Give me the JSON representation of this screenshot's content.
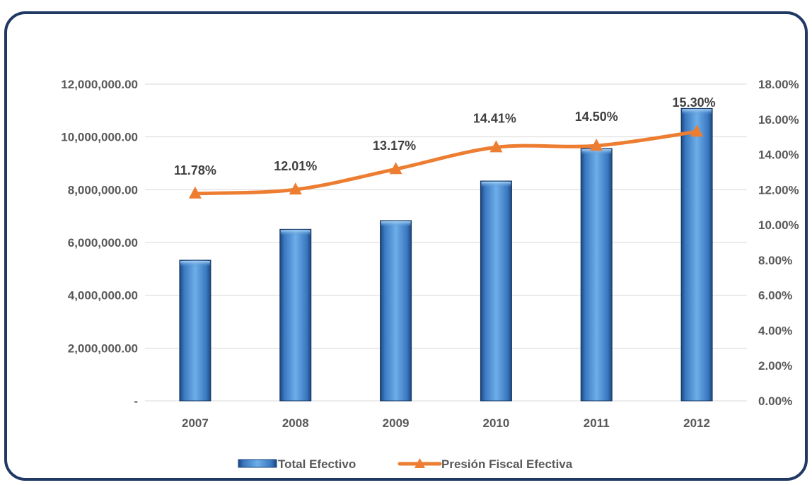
{
  "chart_data": {
    "type": "bar",
    "categories": [
      "2007",
      "2008",
      "2009",
      "2010",
      "2011",
      "2012"
    ],
    "series": [
      {
        "name": "Total Efectivo",
        "type": "bar",
        "axis": "left",
        "values": [
          5330000,
          6500000,
          6830000,
          8330000,
          9560000,
          11080000
        ],
        "color": "#4f8fd0"
      },
      {
        "name": "Presión Fiscal Efectiva",
        "type": "line",
        "axis": "right",
        "values": [
          11.78,
          12.01,
          13.17,
          14.41,
          14.5,
          15.3
        ],
        "labels": [
          "11.78%",
          "12.01%",
          "13.17%",
          "14.41%",
          "14.50%",
          "15.30%"
        ],
        "color": "#ed7d31",
        "marker": "triangle"
      }
    ],
    "left_axis": {
      "ylim": [
        0,
        12000000
      ],
      "ticks": [
        {
          "value": 0,
          "label": "-"
        },
        {
          "value": 2000000,
          "label": "2,000,000.00"
        },
        {
          "value": 4000000,
          "label": "4,000,000.00"
        },
        {
          "value": 6000000,
          "label": "6,000,000.00"
        },
        {
          "value": 8000000,
          "label": "8,000,000.00"
        },
        {
          "value": 10000000,
          "label": "10,000,000.00"
        },
        {
          "value": 12000000,
          "label": "12,000,000.00"
        }
      ]
    },
    "right_axis": {
      "ylim": [
        0,
        18
      ],
      "ticks": [
        {
          "value": 0,
          "label": "0.00%"
        },
        {
          "value": 2,
          "label": "2.00%"
        },
        {
          "value": 4,
          "label": "4.00%"
        },
        {
          "value": 6,
          "label": "6.00%"
        },
        {
          "value": 8,
          "label": "8.00%"
        },
        {
          "value": 10,
          "label": "10.00%"
        },
        {
          "value": 12,
          "label": "12.00%"
        },
        {
          "value": 14,
          "label": "14.00%"
        },
        {
          "value": 16,
          "label": "16.00%"
        },
        {
          "value": 18,
          "label": "18.00%"
        }
      ]
    },
    "grid": true,
    "legend": "bottom",
    "legend_entries": [
      "Total Efectivo",
      "Presión Fiscal Efectiva"
    ]
  }
}
